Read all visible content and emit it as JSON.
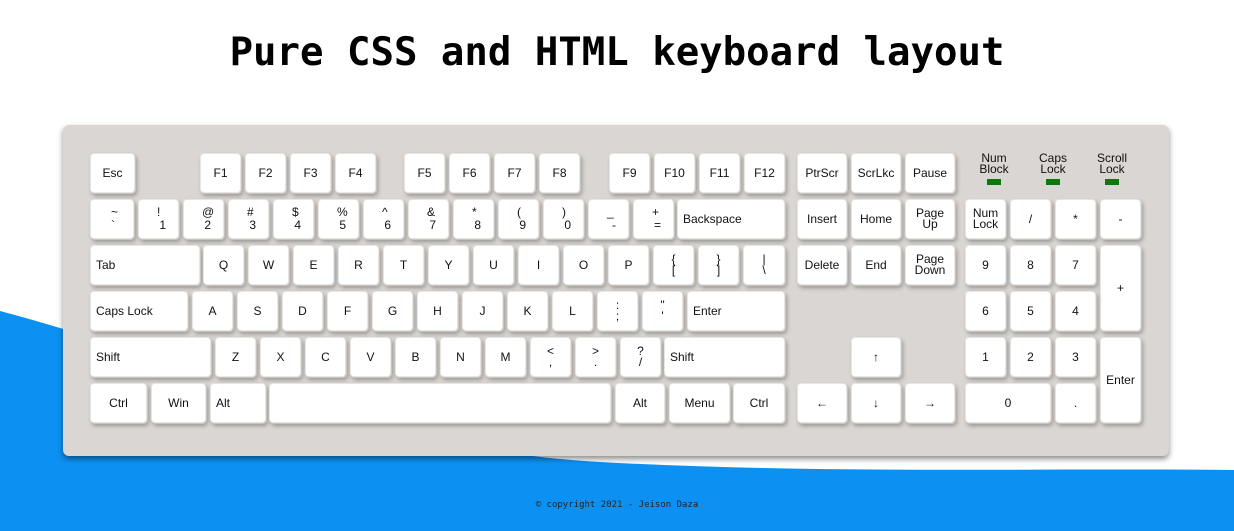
{
  "title": "Pure CSS and HTML keyboard layout",
  "copyright": "© copyright 2021 - Jeison Daza",
  "colors": {
    "wave": "#0c91f2",
    "keyboard": "#dad6d3",
    "key": "#ffffff",
    "led": "#0a7a0a"
  },
  "indicators": [
    {
      "line1": "Num",
      "line2": "Block"
    },
    {
      "line1": "Caps",
      "line2": "Lock"
    },
    {
      "line1": "Scroll",
      "line2": "Lock"
    }
  ],
  "keys": {
    "esc": "Esc",
    "f1": "F1",
    "f2": "F2",
    "f3": "F3",
    "f4": "F4",
    "f5": "F5",
    "f6": "F6",
    "f7": "F7",
    "f8": "F8",
    "f9": "F9",
    "f10": "F10",
    "f11": "F11",
    "f12": "F12",
    "prtscr": "PtrScr",
    "scrlk": "ScrLkc",
    "pause": "Pause",
    "tilde": {
      "top": "~",
      "bot": "`"
    },
    "n1": {
      "top": "!",
      "bot": "1"
    },
    "n2": {
      "top": "@",
      "bot": "2"
    },
    "n3": {
      "top": "#",
      "bot": "3"
    },
    "n4": {
      "top": "$",
      "bot": "4"
    },
    "n5": {
      "top": "%",
      "bot": "5"
    },
    "n6": {
      "top": "^",
      "bot": "6"
    },
    "n7": {
      "top": "&",
      "bot": "7"
    },
    "n8": {
      "top": "*",
      "bot": "8"
    },
    "n9": {
      "top": "(",
      "bot": "9"
    },
    "n0": {
      "top": ")",
      "bot": "0"
    },
    "minus": {
      "top": "_",
      "bot": "-"
    },
    "equal": {
      "top": "+",
      "bot": "="
    },
    "backspace": "Backspace",
    "insert": "Insert",
    "home": "Home",
    "pageup": {
      "top": "Page",
      "bot": "Up"
    },
    "numlock": {
      "top": "Num",
      "bot": "Lock"
    },
    "npslash": "/",
    "npstar": "*",
    "npminus": "-",
    "tab": "Tab",
    "q": "Q",
    "w": "W",
    "e": "E",
    "r": "R",
    "t": "T",
    "y": "Y",
    "u": "U",
    "i": "I",
    "o": "O",
    "p": "P",
    "lbrace": {
      "top": "{",
      "bot": "["
    },
    "rbrace": {
      "top": "}",
      "bot": "]"
    },
    "pipe": {
      "top": "|",
      "bot": "\\"
    },
    "delete": "Delete",
    "end": "End",
    "pagedown": {
      "top": "Page",
      "bot": "Down"
    },
    "np9": "9",
    "np8": "8",
    "np7": "7",
    "npplus": "+",
    "capslock": "Caps Lock",
    "a": "A",
    "s": "S",
    "d": "D",
    "f": "F",
    "g": "G",
    "h": "H",
    "j": "J",
    "k": "K",
    "l": "L",
    "semicolon": {
      "top": ":",
      "bot": ";"
    },
    "quote": {
      "top": "\"",
      "bot": "'"
    },
    "enter": "Enter",
    "np6": "6",
    "np5": "5",
    "np4": "4",
    "lshift": "Shift",
    "z": "Z",
    "x": "X",
    "c": "C",
    "v": "V",
    "b": "B",
    "n": "N",
    "m": "M",
    "comma": {
      "top": "<",
      "bot": ","
    },
    "period": {
      "top": ">",
      "bot": "."
    },
    "slash": {
      "top": "?",
      "bot": "/"
    },
    "rshift": "Shift",
    "up": "↑",
    "np1": "1",
    "np2": "2",
    "np3": "3",
    "npenter": "Enter",
    "lctrl": "Ctrl",
    "win": "Win",
    "lalt": "Alt",
    "space": "",
    "ralt": "Alt",
    "menu": "Menu",
    "rctrl": "Ctrl",
    "left": "←",
    "down": "↓",
    "right": "→",
    "np0": "0",
    "npdot": "."
  }
}
